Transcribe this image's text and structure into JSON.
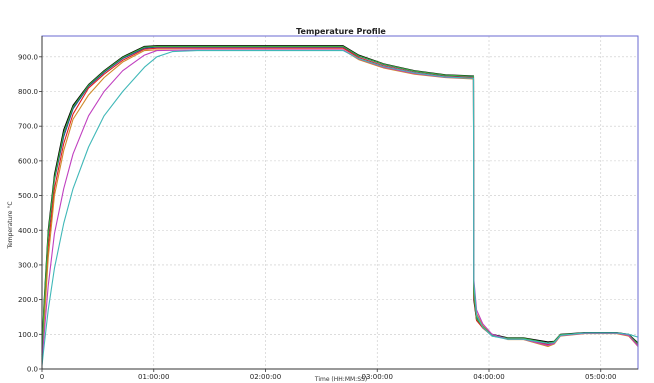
{
  "chart_data": {
    "type": "line",
    "title": "Temperature Profile",
    "xlabel": "Time (HH:MM:SS)",
    "ylabel": "Temperature °C",
    "xlim": [
      0,
      19200
    ],
    "ylim": [
      0,
      960
    ],
    "x_ticks": [
      {
        "value": 0,
        "label": "0"
      },
      {
        "value": 3600,
        "label": "01:00:00"
      },
      {
        "value": 7200,
        "label": "02:00:00"
      },
      {
        "value": 10800,
        "label": "03:00:00"
      },
      {
        "value": 14400,
        "label": "04:00:00"
      },
      {
        "value": 18000,
        "label": "05:00:00"
      }
    ],
    "y_ticks": [
      {
        "value": 0,
        "label": "0.0"
      },
      {
        "value": 100,
        "label": "100.0"
      },
      {
        "value": 200,
        "label": "200.0"
      },
      {
        "value": 300,
        "label": "300.0"
      },
      {
        "value": 400,
        "label": "400.0"
      },
      {
        "value": 500,
        "label": "500.0"
      },
      {
        "value": 600,
        "label": "600.0"
      },
      {
        "value": 700,
        "label": "700.0"
      },
      {
        "value": 800,
        "label": "800.0"
      },
      {
        "value": 900,
        "label": "900.0"
      }
    ],
    "grid": true,
    "series": [
      {
        "color": "#000000",
        "points": [
          [
            0,
            40
          ],
          [
            60,
            180
          ],
          [
            200,
            400
          ],
          [
            400,
            560
          ],
          [
            700,
            690
          ],
          [
            1000,
            760
          ],
          [
            1500,
            820
          ],
          [
            2000,
            860
          ],
          [
            2600,
            900
          ],
          [
            3300,
            930
          ],
          [
            3700,
            932
          ],
          [
            5000,
            932
          ],
          [
            6000,
            932
          ],
          [
            7000,
            932
          ],
          [
            8000,
            932
          ],
          [
            9000,
            932
          ],
          [
            9700,
            932
          ],
          [
            10200,
            905
          ],
          [
            11000,
            880
          ],
          [
            12000,
            860
          ],
          [
            13000,
            848
          ],
          [
            13900,
            845
          ],
          [
            13910,
            200
          ],
          [
            14000,
            140
          ],
          [
            14200,
            120
          ],
          [
            14500,
            100
          ],
          [
            15000,
            90
          ],
          [
            15500,
            90
          ],
          [
            16300,
            78
          ],
          [
            16500,
            80
          ],
          [
            16700,
            100
          ],
          [
            17500,
            105
          ],
          [
            18500,
            105
          ],
          [
            18900,
            100
          ],
          [
            19200,
            75
          ]
        ]
      },
      {
        "color": "#1f3f9f",
        "points": [
          [
            0,
            30
          ],
          [
            60,
            160
          ],
          [
            200,
            380
          ],
          [
            400,
            545
          ],
          [
            700,
            670
          ],
          [
            1000,
            750
          ],
          [
            1500,
            815
          ],
          [
            2000,
            855
          ],
          [
            2600,
            895
          ],
          [
            3300,
            925
          ],
          [
            3700,
            928
          ],
          [
            5000,
            928
          ],
          [
            6000,
            928
          ],
          [
            7000,
            928
          ],
          [
            8000,
            928
          ],
          [
            9000,
            928
          ],
          [
            9700,
            928
          ],
          [
            10200,
            902
          ],
          [
            11000,
            878
          ],
          [
            12000,
            858
          ],
          [
            13000,
            846
          ],
          [
            13900,
            843
          ],
          [
            13910,
            230
          ],
          [
            14000,
            150
          ],
          [
            14200,
            120
          ],
          [
            14500,
            95
          ],
          [
            15000,
            88
          ],
          [
            15500,
            88
          ],
          [
            16300,
            72
          ],
          [
            16500,
            78
          ],
          [
            16700,
            98
          ],
          [
            17500,
            104
          ],
          [
            18500,
            104
          ],
          [
            18900,
            98
          ],
          [
            19200,
            70
          ]
        ]
      },
      {
        "color": "#e02020",
        "points": [
          [
            0,
            25
          ],
          [
            60,
            140
          ],
          [
            200,
            350
          ],
          [
            400,
            520
          ],
          [
            700,
            650
          ],
          [
            1000,
            735
          ],
          [
            1500,
            810
          ],
          [
            2000,
            850
          ],
          [
            2600,
            890
          ],
          [
            3300,
            922
          ],
          [
            3700,
            925
          ],
          [
            5000,
            925
          ],
          [
            6000,
            925
          ],
          [
            7000,
            925
          ],
          [
            8000,
            925
          ],
          [
            9000,
            925
          ],
          [
            9700,
            925
          ],
          [
            10200,
            898
          ],
          [
            11000,
            874
          ],
          [
            12000,
            855
          ],
          [
            13000,
            843
          ],
          [
            13900,
            840
          ],
          [
            13910,
            210
          ],
          [
            14000,
            140
          ],
          [
            14200,
            118
          ],
          [
            14500,
            96
          ],
          [
            15000,
            87
          ],
          [
            15500,
            87
          ],
          [
            16300,
            70
          ],
          [
            16500,
            76
          ],
          [
            16700,
            97
          ],
          [
            17500,
            103
          ],
          [
            18500,
            103
          ],
          [
            18900,
            96
          ],
          [
            19200,
            68
          ]
        ]
      },
      {
        "color": "#d08a2a",
        "points": [
          [
            0,
            20
          ],
          [
            60,
            120
          ],
          [
            200,
            320
          ],
          [
            400,
            500
          ],
          [
            700,
            630
          ],
          [
            1000,
            720
          ],
          [
            1500,
            790
          ],
          [
            2000,
            840
          ],
          [
            2600,
            885
          ],
          [
            3300,
            918
          ],
          [
            3700,
            920
          ],
          [
            5000,
            920
          ],
          [
            6000,
            920
          ],
          [
            7000,
            920
          ],
          [
            8000,
            920
          ],
          [
            9000,
            920
          ],
          [
            9700,
            920
          ],
          [
            10200,
            892
          ],
          [
            11000,
            868
          ],
          [
            12000,
            850
          ],
          [
            13000,
            840
          ],
          [
            13900,
            836
          ],
          [
            13910,
            240
          ],
          [
            14000,
            160
          ],
          [
            14200,
            125
          ],
          [
            14500,
            98
          ],
          [
            15000,
            85
          ],
          [
            15500,
            85
          ],
          [
            16300,
            65
          ],
          [
            16500,
            72
          ],
          [
            16700,
            95
          ],
          [
            17500,
            102
          ],
          [
            18500,
            102
          ],
          [
            18900,
            95
          ],
          [
            19200,
            65
          ]
        ]
      },
      {
        "color": "#3caa3c",
        "points": [
          [
            0,
            35
          ],
          [
            60,
            170
          ],
          [
            200,
            390
          ],
          [
            400,
            550
          ],
          [
            700,
            680
          ],
          [
            1000,
            755
          ],
          [
            1500,
            818
          ],
          [
            2000,
            858
          ],
          [
            2600,
            898
          ],
          [
            3300,
            928
          ],
          [
            3700,
            930
          ],
          [
            5000,
            930
          ],
          [
            6000,
            930
          ],
          [
            7000,
            930
          ],
          [
            8000,
            930
          ],
          [
            9000,
            930
          ],
          [
            9700,
            930
          ],
          [
            10200,
            903
          ],
          [
            11000,
            879
          ],
          [
            12000,
            859
          ],
          [
            13000,
            847
          ],
          [
            13900,
            844
          ],
          [
            13910,
            220
          ],
          [
            14000,
            145
          ],
          [
            14200,
            122
          ],
          [
            14500,
            97
          ],
          [
            15000,
            89
          ],
          [
            15500,
            89
          ],
          [
            16300,
            75
          ],
          [
            16500,
            79
          ],
          [
            16700,
            99
          ],
          [
            17500,
            104
          ],
          [
            18500,
            104
          ],
          [
            18900,
            99
          ],
          [
            19200,
            72
          ]
        ]
      },
      {
        "color": "#c040c0",
        "points": [
          [
            0,
            15
          ],
          [
            60,
            90
          ],
          [
            200,
            240
          ],
          [
            400,
            390
          ],
          [
            700,
            520
          ],
          [
            1000,
            620
          ],
          [
            1500,
            730
          ],
          [
            2000,
            800
          ],
          [
            2600,
            860
          ],
          [
            3300,
            905
          ],
          [
            3700,
            918
          ],
          [
            5000,
            920
          ],
          [
            6000,
            920
          ],
          [
            7000,
            920
          ],
          [
            8000,
            920
          ],
          [
            9000,
            920
          ],
          [
            9700,
            920
          ],
          [
            10200,
            894
          ],
          [
            11000,
            870
          ],
          [
            12000,
            852
          ],
          [
            13000,
            841
          ],
          [
            13900,
            838
          ],
          [
            13910,
            260
          ],
          [
            14000,
            170
          ],
          [
            14200,
            130
          ],
          [
            14500,
            100
          ],
          [
            15000,
            86
          ],
          [
            15500,
            86
          ],
          [
            16300,
            68
          ],
          [
            16500,
            74
          ],
          [
            16700,
            96
          ],
          [
            17500,
            103
          ],
          [
            18500,
            103
          ],
          [
            18900,
            97
          ],
          [
            19200,
            66
          ]
        ]
      },
      {
        "color": "#40b8b8",
        "points": [
          [
            0,
            10
          ],
          [
            60,
            60
          ],
          [
            200,
            170
          ],
          [
            400,
            290
          ],
          [
            700,
            420
          ],
          [
            1000,
            520
          ],
          [
            1500,
            640
          ],
          [
            2000,
            730
          ],
          [
            2600,
            800
          ],
          [
            3000,
            840
          ],
          [
            3300,
            870
          ],
          [
            3700,
            900
          ],
          [
            4200,
            915
          ],
          [
            5000,
            918
          ],
          [
            6000,
            918
          ],
          [
            7000,
            918
          ],
          [
            8000,
            918
          ],
          [
            9000,
            918
          ],
          [
            9700,
            918
          ],
          [
            10200,
            895
          ],
          [
            11000,
            872
          ],
          [
            12000,
            854
          ],
          [
            13000,
            842
          ],
          [
            13900,
            838
          ],
          [
            13910,
            250
          ],
          [
            14000,
            155
          ],
          [
            14200,
            120
          ],
          [
            14500,
            95
          ],
          [
            15000,
            86
          ],
          [
            15500,
            86
          ],
          [
            16300,
            74
          ],
          [
            16500,
            76
          ],
          [
            16700,
            97
          ],
          [
            17500,
            104
          ],
          [
            18500,
            104
          ],
          [
            18900,
            100
          ],
          [
            19200,
            92
          ]
        ]
      }
    ]
  }
}
